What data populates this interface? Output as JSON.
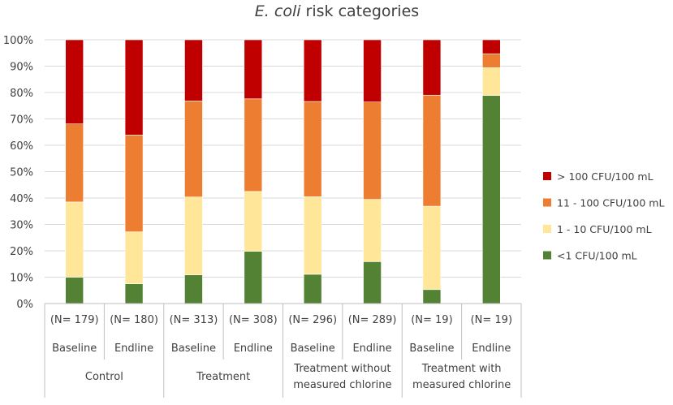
{
  "chart_data": {
    "type": "bar",
    "stacked": true,
    "title_italic": "E. coli",
    "title_rest": " risk categories",
    "ylim": [
      0,
      100
    ],
    "yticks": [
      "0%",
      "10%",
      "20%",
      "30%",
      "40%",
      "50%",
      "60%",
      "70%",
      "80%",
      "90%",
      "100%"
    ],
    "grid": true,
    "legend_position": "right",
    "bars": [
      {
        "n_label": "(N= 179)",
        "period": "Baseline"
      },
      {
        "n_label": "(N= 180)",
        "period": "Endline"
      },
      {
        "n_label": "(N= 313)",
        "period": "Baseline"
      },
      {
        "n_label": "(N= 308)",
        "period": "Endline"
      },
      {
        "n_label": "(N= 296)",
        "period": "Baseline"
      },
      {
        "n_label": "(N= 289)",
        "period": "Endline"
      },
      {
        "n_label": "(N= 19)",
        "period": "Baseline"
      },
      {
        "n_label": "(N= 19)",
        "period": "Endline"
      }
    ],
    "groups": [
      {
        "label_lines": [
          "Control"
        ]
      },
      {
        "label_lines": [
          "Treatment"
        ]
      },
      {
        "label_lines": [
          "Treatment without",
          "measured chlorine"
        ]
      },
      {
        "label_lines": [
          "Treatment with",
          "measured chlorine"
        ]
      }
    ],
    "series": [
      {
        "name": "<1 CFU/100 mL",
        "color": "#548235",
        "values": [
          10,
          7.5,
          10.9,
          19.8,
          11.1,
          15.9,
          5.3,
          78.9
        ]
      },
      {
        "name": "1 - 10 CFU/100 mL",
        "color": "#FFE699",
        "values": [
          28.5,
          19.7,
          29.5,
          22.7,
          29.4,
          23.6,
          31.6,
          10.5
        ]
      },
      {
        "name": "11 - 100 CFU/100 mL",
        "color": "#ED7D31",
        "values": [
          29.6,
          36.7,
          36.4,
          35.1,
          36.1,
          36.9,
          42.1,
          5.3
        ]
      },
      {
        "name": "> 100 CFU/100 mL",
        "color": "#C00000",
        "values": [
          31.9,
          36.1,
          23.2,
          22.4,
          23.4,
          23.6,
          21.0,
          5.3
        ]
      }
    ],
    "legend_order": [
      3,
      2,
      1,
      0
    ]
  }
}
